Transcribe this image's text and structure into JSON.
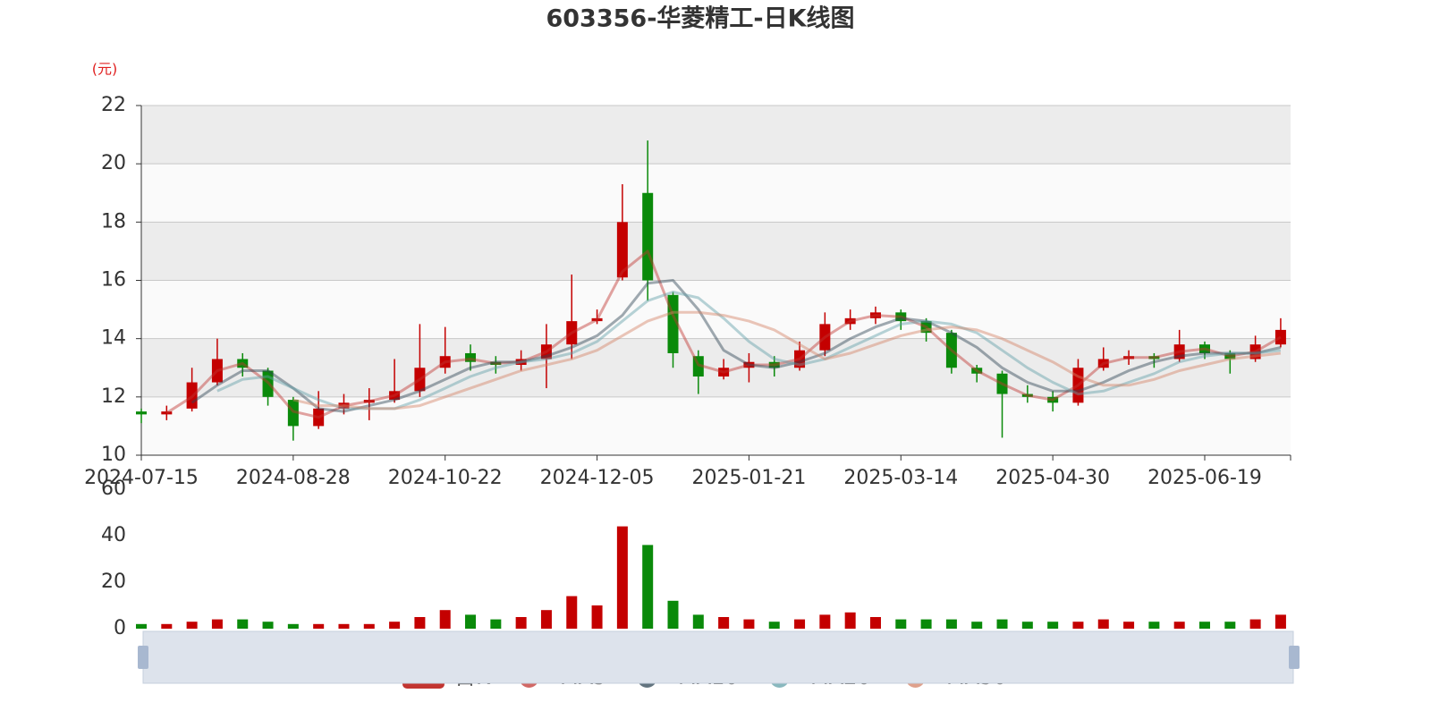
{
  "chart_data": {
    "type": "candlestick",
    "title": "603356-华菱精工-日K线图",
    "y_axis_name": "(元)",
    "up_color": "#c40000",
    "down_color": "#0a8a0a",
    "categories": [
      "2024-07-15",
      null,
      null,
      null,
      null,
      null,
      "2024-08-28",
      null,
      null,
      null,
      null,
      null,
      "2024-10-22",
      null,
      null,
      null,
      null,
      null,
      "2024-12-05",
      null,
      null,
      null,
      null,
      null,
      "2025-01-21",
      null,
      null,
      null,
      null,
      null,
      "2025-03-14",
      null,
      null,
      null,
      null,
      null,
      "2025-04-30",
      null,
      null,
      null,
      null,
      null,
      "2025-06-19",
      null,
      null,
      null
    ],
    "ylim": [
      10,
      22
    ],
    "yticks": [
      10,
      12,
      14,
      16,
      18,
      20,
      22
    ],
    "split_area": true,
    "series": [
      {
        "name": "日K",
        "color": "#c23531",
        "values": [
          [
            11.5,
            11.4,
            11.1,
            11.6
          ],
          [
            11.4,
            11.5,
            11.2,
            11.7
          ],
          [
            11.6,
            12.5,
            11.5,
            13.0
          ],
          [
            12.5,
            13.3,
            12.4,
            14.0
          ],
          [
            13.3,
            13.0,
            12.7,
            13.5
          ],
          [
            12.9,
            12.0,
            11.7,
            13.0
          ],
          [
            11.9,
            11.0,
            10.5,
            12.0
          ],
          [
            11.0,
            11.6,
            10.9,
            12.2
          ],
          [
            11.6,
            11.8,
            11.4,
            12.1
          ],
          [
            11.8,
            11.9,
            11.2,
            12.3
          ],
          [
            11.9,
            12.2,
            11.8,
            13.3
          ],
          [
            12.2,
            13.0,
            12.0,
            14.5
          ],
          [
            13.0,
            13.4,
            12.8,
            14.4
          ],
          [
            13.5,
            13.2,
            12.9,
            13.8
          ],
          [
            13.2,
            13.1,
            12.8,
            13.4
          ],
          [
            13.1,
            13.3,
            12.9,
            13.6
          ],
          [
            13.3,
            13.8,
            12.3,
            14.5
          ],
          [
            13.8,
            14.6,
            13.3,
            16.2
          ],
          [
            14.6,
            14.7,
            14.5,
            15.0
          ],
          [
            16.1,
            18.0,
            16.0,
            19.3
          ],
          [
            19.0,
            16.0,
            15.3,
            20.8
          ],
          [
            15.5,
            13.5,
            13.0,
            15.6
          ],
          [
            13.4,
            12.7,
            12.1,
            13.6
          ],
          [
            12.7,
            13.0,
            12.6,
            13.3
          ],
          [
            13.0,
            13.2,
            12.5,
            13.5
          ],
          [
            13.2,
            13.0,
            12.7,
            13.4
          ],
          [
            13.0,
            13.6,
            12.9,
            13.9
          ],
          [
            13.6,
            14.5,
            13.4,
            14.9
          ],
          [
            14.5,
            14.7,
            14.3,
            15.0
          ],
          [
            14.7,
            14.9,
            14.5,
            15.1
          ],
          [
            14.9,
            14.6,
            14.3,
            15.0
          ],
          [
            14.6,
            14.2,
            13.9,
            14.7
          ],
          [
            14.2,
            13.0,
            12.8,
            14.3
          ],
          [
            13.0,
            12.8,
            12.5,
            13.1
          ],
          [
            12.8,
            12.1,
            10.6,
            12.9
          ],
          [
            12.1,
            12.0,
            11.8,
            12.4
          ],
          [
            12.0,
            11.8,
            11.5,
            12.2
          ],
          [
            11.8,
            13.0,
            11.7,
            13.3
          ],
          [
            13.0,
            13.3,
            12.9,
            13.7
          ],
          [
            13.3,
            13.4,
            13.1,
            13.6
          ],
          [
            13.4,
            13.3,
            13.0,
            13.5
          ],
          [
            13.3,
            13.8,
            13.2,
            14.3
          ],
          [
            13.8,
            13.5,
            13.3,
            13.9
          ],
          [
            13.5,
            13.3,
            12.8,
            13.6
          ],
          [
            13.3,
            13.8,
            13.2,
            14.1
          ],
          [
            13.8,
            14.3,
            13.7,
            14.7
          ]
        ]
      },
      {
        "name": "MA5",
        "color": "#c23531",
        "values": [
          null,
          11.45,
          12.0,
          12.9,
          13.15,
          12.5,
          11.5,
          11.3,
          11.7,
          11.85,
          12.05,
          12.6,
          13.2,
          13.3,
          13.15,
          13.2,
          13.55,
          14.2,
          14.65,
          16.3,
          17.0,
          14.8,
          13.1,
          12.85,
          13.1,
          13.1,
          13.3,
          14.05,
          14.6,
          14.8,
          14.75,
          14.4,
          13.6,
          12.9,
          12.45,
          12.05,
          11.9,
          12.4,
          13.15,
          13.35,
          13.35,
          13.55,
          13.65,
          13.4,
          13.55,
          14.05
        ]
      },
      {
        "name": "MA10",
        "color": "#2f4554",
        "values": [
          null,
          null,
          11.8,
          12.4,
          12.9,
          12.9,
          12.3,
          11.6,
          11.5,
          11.7,
          11.9,
          12.2,
          12.6,
          13.0,
          13.2,
          13.2,
          13.4,
          13.7,
          14.1,
          14.8,
          15.9,
          16.0,
          15.0,
          13.6,
          13.1,
          13.0,
          13.2,
          13.5,
          14.0,
          14.4,
          14.7,
          14.6,
          14.2,
          13.7,
          13.0,
          12.5,
          12.2,
          12.2,
          12.5,
          12.9,
          13.2,
          13.4,
          13.5,
          13.5,
          13.5,
          13.7
        ]
      },
      {
        "name": "MA20",
        "color": "#61a0a8",
        "values": [
          null,
          null,
          null,
          12.2,
          12.6,
          12.7,
          12.3,
          11.9,
          11.6,
          11.6,
          11.6,
          11.9,
          12.3,
          12.7,
          13.0,
          13.2,
          13.3,
          13.5,
          13.9,
          14.6,
          15.3,
          15.6,
          15.4,
          14.7,
          13.9,
          13.3,
          13.1,
          13.3,
          13.7,
          14.1,
          14.5,
          14.6,
          14.5,
          14.2,
          13.6,
          13.0,
          12.5,
          12.1,
          12.2,
          12.5,
          12.8,
          13.2,
          13.4,
          13.5,
          13.5,
          13.6
        ]
      },
      {
        "name": "MA30",
        "color": "#d48265",
        "values": [
          null,
          null,
          null,
          null,
          null,
          null,
          11.9,
          11.7,
          11.7,
          11.6,
          11.6,
          11.7,
          12.0,
          12.3,
          12.6,
          12.9,
          13.1,
          13.3,
          13.6,
          14.1,
          14.6,
          14.9,
          14.9,
          14.8,
          14.6,
          14.3,
          13.8,
          13.3,
          13.5,
          13.8,
          14.1,
          14.3,
          14.4,
          14.3,
          14.0,
          13.6,
          13.2,
          12.7,
          12.4,
          12.4,
          12.6,
          12.9,
          13.1,
          13.3,
          13.4,
          13.5
        ]
      }
    ],
    "volume_values": [
      2,
      2,
      3,
      4,
      4,
      3,
      2,
      2,
      2,
      2,
      3,
      5,
      8,
      6,
      4,
      5,
      8,
      14,
      10,
      44,
      36,
      12,
      6,
      5,
      4,
      3,
      4,
      6,
      7,
      5,
      4,
      4,
      4,
      3,
      4,
      3,
      3,
      3,
      4,
      3,
      3,
      3,
      3,
      3,
      4,
      6
    ],
    "volume_ylim": [
      0,
      60
    ],
    "volume_yticks": [
      0,
      20,
      40,
      60
    ]
  }
}
